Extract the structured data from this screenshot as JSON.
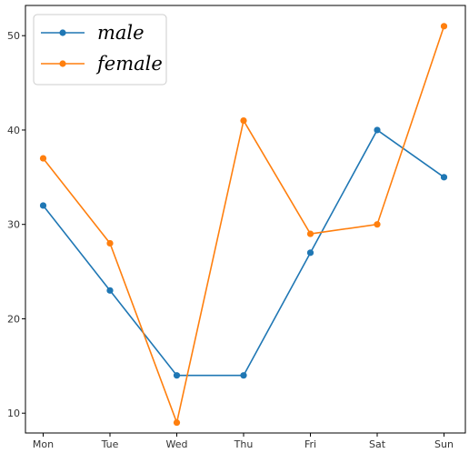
{
  "chart_data": {
    "type": "line",
    "categories": [
      "Mon",
      "Tue",
      "Wed",
      "Thu",
      "Fri",
      "Sat",
      "Sun"
    ],
    "series": [
      {
        "name": "male",
        "values": [
          32,
          23,
          14,
          14,
          27,
          40,
          35
        ],
        "color": "#1f77b4"
      },
      {
        "name": "female",
        "values": [
          37,
          28,
          9,
          41,
          29,
          30,
          51
        ],
        "color": "#ff7f0e"
      }
    ],
    "title": "",
    "xlabel": "",
    "ylabel": "",
    "ylim": [
      7.9,
      53.2
    ],
    "yticks": [
      10,
      20,
      30,
      40,
      50
    ],
    "grid": false,
    "legend_position": "upper-left",
    "marker": "circle"
  }
}
